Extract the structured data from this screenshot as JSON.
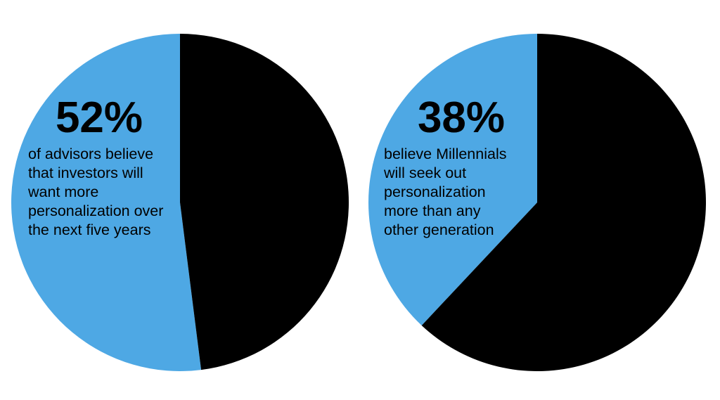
{
  "chart_data": [
    {
      "type": "pie",
      "values": [
        52,
        48
      ],
      "colors": [
        "#4ea8e4",
        "#000000"
      ],
      "label": "52%",
      "description": [
        "of advisors believe",
        "that investors will",
        "want more",
        "personalization over",
        "the next five years"
      ]
    },
    {
      "type": "pie",
      "values": [
        38,
        62
      ],
      "colors": [
        "#4ea8e4",
        "#000000"
      ],
      "label": "38%",
      "description": [
        "believe Millennials",
        "will seek out",
        "personalization",
        "more than any",
        "other generation"
      ]
    }
  ]
}
